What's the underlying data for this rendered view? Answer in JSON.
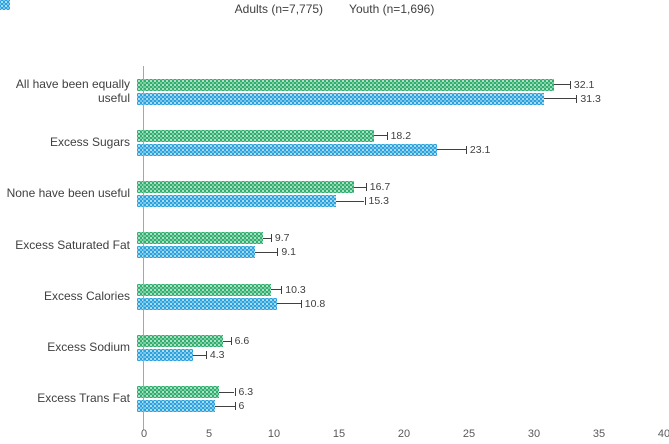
{
  "chart_data": {
    "type": "bar",
    "orientation": "horizontal",
    "title": "",
    "xlabel": "",
    "ylabel": "",
    "xlim": [
      0,
      40
    ],
    "xticks": [
      0,
      5,
      10,
      15,
      20,
      25,
      30,
      35,
      40
    ],
    "grid": false,
    "legend_position": "top-center",
    "axis_color": "#a6a6a6",
    "categories": [
      "All have been equally useful",
      "Excess Sugars",
      "None have been useful",
      "Excess Saturated Fat",
      "Excess Calories",
      "Excess Sodium",
      "Excess Trans Fat"
    ],
    "series": [
      {
        "name": "Adults (n=7,775)",
        "color": "#2fae6e",
        "pattern": "light-dots",
        "values": [
          32.1,
          18.2,
          16.7,
          9.7,
          10.3,
          6.6,
          6.3
        ],
        "errors_plus": [
          1.2,
          1.0,
          0.9,
          0.6,
          0.8,
          0.6,
          1.2
        ],
        "data_labels": [
          "32.1",
          "18.2",
          "16.7",
          "9.7",
          "10.3",
          "6.6",
          "6.3"
        ]
      },
      {
        "name": "Youth (n=1,696)",
        "color": "#2aa2de",
        "pattern": "light-dots",
        "values": [
          31.3,
          23.1,
          15.3,
          9.1,
          10.8,
          4.3,
          6.0
        ],
        "errors_plus": [
          2.5,
          2.2,
          2.2,
          1.7,
          1.8,
          1.0,
          1.5
        ],
        "data_labels": [
          "31.3",
          "23.1",
          "15.3",
          "9.1",
          "10.8",
          "4.3",
          "6"
        ]
      }
    ]
  }
}
